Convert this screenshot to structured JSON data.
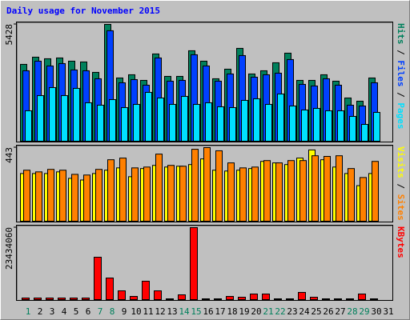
{
  "chart_data": {
    "type": "bar",
    "title": "Daily usage for November 2015",
    "categories": [
      "1",
      "2",
      "3",
      "4",
      "5",
      "6",
      "7",
      "8",
      "9",
      "10",
      "11",
      "12",
      "13",
      "14",
      "15",
      "16",
      "17",
      "18",
      "19",
      "20",
      "21",
      "22",
      "23",
      "24",
      "25",
      "26",
      "27",
      "28",
      "29",
      "30",
      "31"
    ],
    "category_colors": [
      "#00805c",
      "#000000",
      "#000000",
      "#000000",
      "#000000",
      "#000000",
      "#00805c",
      "#00805c",
      "#000000",
      "#000000",
      "#000000",
      "#000000",
      "#000000",
      "#00805c",
      "#00805c",
      "#000000",
      "#000000",
      "#000000",
      "#000000",
      "#000000",
      "#00805c",
      "#00805c",
      "#000000",
      "#000000",
      "#000000",
      "#000000",
      "#000000",
      "#00805c",
      "#00805c",
      "#000000",
      "#000000"
    ],
    "legend_separator": " / ",
    "panels": [
      {
        "ylim": [
          0,
          5428
        ],
        "yticks": [
          5428
        ],
        "series": [
          {
            "name": "Hits",
            "color": "#00805c",
            "values": [
              3571,
              3906,
              3832,
              3869,
              3720,
              3683,
              3199,
              5428,
              2939,
              3088,
              2827,
              4055,
              3013,
              3013,
              4204,
              3720,
              2902,
              3348,
              4315,
              3125,
              3274,
              3646,
              4092,
              2827,
              2827,
              3088,
              2790,
              2009,
              1860,
              2939,
              null
            ]
          },
          {
            "name": "Files",
            "color": "#0040ff",
            "values": [
              3274,
              3720,
              3497,
              3608,
              3311,
              3274,
              2902,
              5134,
              2716,
              2864,
              2604,
              3869,
              2790,
              2827,
              4018,
              3497,
              2790,
              3125,
              3980,
              2976,
              3088,
              3162,
              3794,
              2641,
              2567,
              2902,
              2604,
              1674,
              1637,
              2716,
              null
            ]
          },
          {
            "name": "Pages",
            "color": "#00e0ff",
            "values": [
              1414,
              2120,
              2492,
              2120,
              2455,
              1786,
              1674,
              1934,
              1562,
              1711,
              2269,
              2009,
              1711,
              2083,
              1711,
              1786,
              1600,
              1562,
              1897,
              1972,
              1711,
              2195,
              1637,
              1451,
              1525,
              1414,
              1414,
              1153,
              781,
              1339,
              null
            ]
          }
        ]
      },
      {
        "ylim": [
          0,
          443
        ],
        "yticks": [
          443
        ],
        "series": [
          {
            "name": "Visits",
            "color": "#ffff00",
            "values": [
              287,
              287,
              287,
              297,
              258,
              248,
              287,
              307,
              321,
              268,
              317,
              336,
              326,
              331,
              341,
              375,
              307,
              302,
              307,
              317,
              360,
              351,
              341,
              380,
              429,
              370,
              326,
              287,
              214,
              287,
              null
            ]
          },
          {
            "name": "Sites",
            "color": "#ff8000",
            "values": [
              307,
              297,
              312,
              307,
              282,
              278,
              312,
              370,
              380,
              321,
              326,
              404,
              336,
              331,
              433,
              443,
              424,
              351,
              321,
              326,
              365,
              351,
              365,
              365,
              394,
              390,
              394,
              317,
              263,
              360,
              null
            ]
          }
        ]
      },
      {
        "ylim": [
          0,
          23434060
        ],
        "yticks": [
          23434060
        ],
        "series": [
          {
            "name": "KBytes",
            "color": "#ff0000",
            "values": [
              520000,
              520000,
              520000,
              520000,
              520000,
              520000,
              13800000,
              7030000,
              2860000,
              1040000,
              5990000,
              2860000,
              260000,
              1560000,
              23434060,
              260000,
              260000,
              1040000,
              780000,
              1820000,
              1820000,
              260000,
              260000,
              2340000,
              780000,
              260000,
              260000,
              260000,
              1820000,
              260000,
              null
            ]
          }
        ]
      }
    ]
  }
}
